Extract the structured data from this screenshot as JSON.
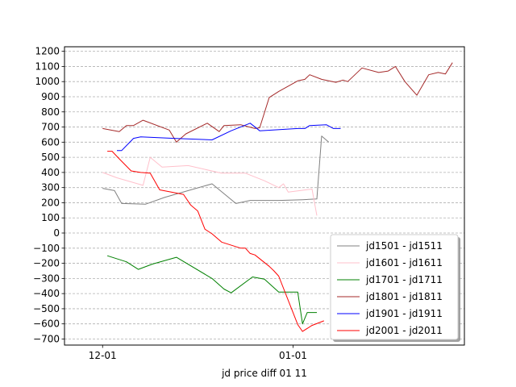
{
  "chart_data": {
    "type": "line",
    "title": "",
    "xlabel": "jd price diff 01 11",
    "ylabel": "",
    "x_unit": "day index (0 = 12-01)",
    "xlim": [
      -8,
      76
    ],
    "ylim": [
      -740,
      1230
    ],
    "x_ticks": [
      {
        "value": 0,
        "label": "12-01"
      },
      {
        "value": 40,
        "label": "01-01"
      }
    ],
    "y_ticks": [
      -700,
      -600,
      -500,
      -400,
      -300,
      -200,
      -100,
      0,
      100,
      200,
      300,
      400,
      500,
      600,
      700,
      800,
      900,
      1000,
      1100,
      1200
    ],
    "grid": {
      "y": true,
      "x": false,
      "style": "dashed"
    },
    "legend_position": "lower-right",
    "series": [
      {
        "name": "jd1501 - jd1511",
        "color": "#808080",
        "x": [
          0,
          2.5,
          4,
          9,
          13,
          18,
          23,
          28,
          31,
          37,
          42,
          45,
          46,
          47.5
        ],
        "y": [
          295,
          280,
          195,
          190,
          235,
          280,
          325,
          195,
          215,
          215,
          220,
          225,
          640,
          600
        ]
      },
      {
        "name": "jd1601 - jd1611",
        "color": "#ffc0cb",
        "x": [
          0,
          3,
          8.5,
          10,
          12.5,
          18,
          25,
          30,
          34,
          37,
          38,
          39,
          44,
          45
        ],
        "y": [
          400,
          365,
          315,
          500,
          435,
          445,
          395,
          395,
          345,
          300,
          325,
          270,
          290,
          115
        ]
      },
      {
        "name": "jd1701 - jd1711",
        "color": "#008000",
        "x": [
          1,
          5,
          7.5,
          10.5,
          15.5,
          23,
          25.5,
          27,
          31.5,
          34,
          37,
          41,
          42,
          43,
          45
        ],
        "y": [
          -150,
          -190,
          -240,
          -205,
          -160,
          -300,
          -370,
          -395,
          -290,
          -305,
          -390,
          -390,
          -600,
          -525,
          -525
        ]
      },
      {
        "name": "jd1801 - jd1811",
        "color": "#a52a2a",
        "x": [
          0,
          3.5,
          5,
          6.5,
          8.5,
          14,
          15.5,
          17.5,
          22,
          24.5,
          25.5,
          29,
          32,
          33,
          35,
          37,
          41,
          42.5,
          43.5,
          46,
          49,
          50.5,
          51.5,
          54.5,
          58,
          60,
          61.5,
          63.5,
          66,
          68.5,
          70.5,
          72,
          73.5
        ],
        "y": [
          690,
          670,
          710,
          710,
          745,
          680,
          600,
          655,
          725,
          670,
          710,
          715,
          690,
          695,
          895,
          935,
          1005,
          1015,
          1045,
          1015,
          995,
          1010,
          1000,
          1090,
          1060,
          1070,
          1100,
          1000,
          910,
          1045,
          1060,
          1050,
          1125
        ]
      },
      {
        "name": "jd1901 - jd1911",
        "color": "#0000ff",
        "x": [
          3,
          4,
          6.5,
          8,
          15,
          23,
          27,
          31,
          33,
          41,
          42.5,
          43.5,
          47,
          48.5,
          50
        ],
        "y": [
          545,
          545,
          625,
          635,
          625,
          615,
          675,
          725,
          675,
          690,
          690,
          710,
          715,
          690,
          690
        ]
      },
      {
        "name": "jd2001 - jd2011",
        "color": "#ff0000",
        "x": [
          1,
          2,
          3.5,
          6,
          8,
          10,
          12,
          17,
          18.5,
          20,
          21.5,
          23,
          25,
          29,
          30,
          31,
          32,
          35,
          36,
          37,
          41,
          42,
          44,
          46.5
        ],
        "y": [
          540,
          540,
          490,
          410,
          400,
          395,
          285,
          255,
          185,
          145,
          25,
          -5,
          -60,
          -100,
          -100,
          -135,
          -145,
          -220,
          -250,
          -285,
          -605,
          -650,
          -610,
          -580
        ]
      }
    ]
  }
}
